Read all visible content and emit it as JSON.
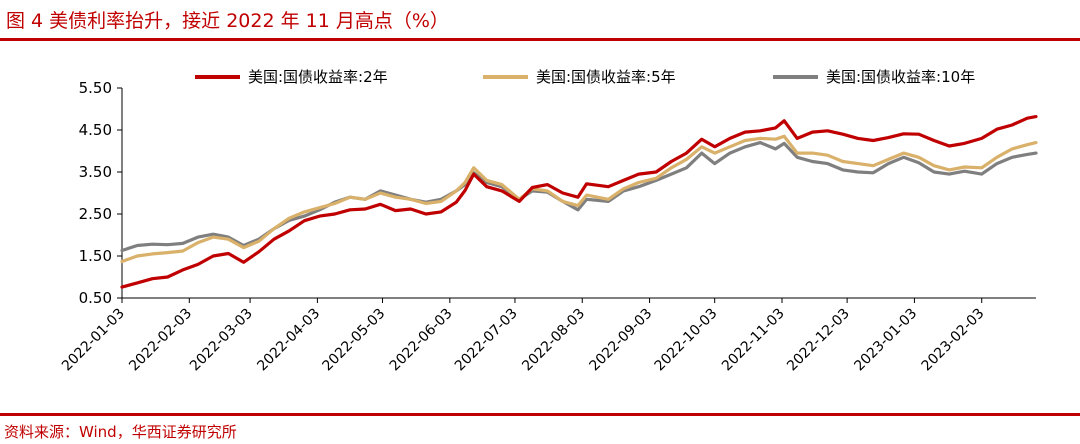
{
  "figure": {
    "title": "图 4  美债利率抬升，接近 2022 年 11 月高点（%）",
    "source": "资料来源：Wind，华西证券研究所"
  },
  "chart_data": {
    "type": "line",
    "ylim": [
      0.5,
      5.5
    ],
    "yticks": [
      "0.50",
      "1.50",
      "2.50",
      "3.50",
      "4.50",
      "5.50"
    ],
    "xlim": [
      "2022-01-03",
      "2023-02-28"
    ],
    "xticks": [
      "2022-01-03",
      "2022-02-03",
      "2022-03-03",
      "2022-04-03",
      "2022-05-03",
      "2022-06-03",
      "2022-07-03",
      "2022-08-03",
      "2022-09-03",
      "2022-10-03",
      "2022-11-03",
      "2022-12-03",
      "2023-01-03",
      "2023-02-03"
    ],
    "legend_position": "top",
    "grid": false,
    "series": [
      {
        "name": "美国:国债收益率:2年",
        "color": "#c00000",
        "points": [
          [
            "2022-01-03",
            0.76
          ],
          [
            "2022-01-10",
            0.86
          ],
          [
            "2022-01-17",
            0.96
          ],
          [
            "2022-01-24",
            1.0
          ],
          [
            "2022-01-31",
            1.17
          ],
          [
            "2022-02-07",
            1.3
          ],
          [
            "2022-02-14",
            1.5
          ],
          [
            "2022-02-21",
            1.56
          ],
          [
            "2022-02-28",
            1.35
          ],
          [
            "2022-03-07",
            1.6
          ],
          [
            "2022-03-14",
            1.9
          ],
          [
            "2022-03-21",
            2.1
          ],
          [
            "2022-03-28",
            2.34
          ],
          [
            "2022-04-04",
            2.45
          ],
          [
            "2022-04-11",
            2.5
          ],
          [
            "2022-04-18",
            2.6
          ],
          [
            "2022-04-25",
            2.62
          ],
          [
            "2022-05-02",
            2.73
          ],
          [
            "2022-05-09",
            2.58
          ],
          [
            "2022-05-16",
            2.62
          ],
          [
            "2022-05-23",
            2.5
          ],
          [
            "2022-05-30",
            2.55
          ],
          [
            "2022-06-06",
            2.78
          ],
          [
            "2022-06-10",
            3.06
          ],
          [
            "2022-06-14",
            3.45
          ],
          [
            "2022-06-20",
            3.15
          ],
          [
            "2022-06-27",
            3.05
          ],
          [
            "2022-07-05",
            2.8
          ],
          [
            "2022-07-11",
            3.13
          ],
          [
            "2022-07-18",
            3.2
          ],
          [
            "2022-07-25",
            3.0
          ],
          [
            "2022-08-01",
            2.9
          ],
          [
            "2022-08-05",
            3.22
          ],
          [
            "2022-08-15",
            3.15
          ],
          [
            "2022-08-22",
            3.3
          ],
          [
            "2022-08-29",
            3.45
          ],
          [
            "2022-09-06",
            3.5
          ],
          [
            "2022-09-13",
            3.75
          ],
          [
            "2022-09-20",
            3.95
          ],
          [
            "2022-09-27",
            4.28
          ],
          [
            "2022-10-03",
            4.1
          ],
          [
            "2022-10-10",
            4.3
          ],
          [
            "2022-10-17",
            4.45
          ],
          [
            "2022-10-24",
            4.48
          ],
          [
            "2022-10-31",
            4.55
          ],
          [
            "2022-11-04",
            4.72
          ],
          [
            "2022-11-10",
            4.3
          ],
          [
            "2022-11-17",
            4.45
          ],
          [
            "2022-11-24",
            4.48
          ],
          [
            "2022-12-01",
            4.4
          ],
          [
            "2022-12-08",
            4.3
          ],
          [
            "2022-12-15",
            4.25
          ],
          [
            "2022-12-22",
            4.32
          ],
          [
            "2022-12-29",
            4.41
          ],
          [
            "2023-01-05",
            4.4
          ],
          [
            "2023-01-12",
            4.25
          ],
          [
            "2023-01-19",
            4.12
          ],
          [
            "2023-01-26",
            4.18
          ],
          [
            "2023-02-03",
            4.3
          ],
          [
            "2023-02-10",
            4.52
          ],
          [
            "2023-02-17",
            4.62
          ],
          [
            "2023-02-24",
            4.78
          ],
          [
            "2023-02-28",
            4.82
          ]
        ]
      },
      {
        "name": "美国:国债收益率:5年",
        "color": "#d9b16a",
        "points": [
          [
            "2022-01-03",
            1.37
          ],
          [
            "2022-01-10",
            1.5
          ],
          [
            "2022-01-17",
            1.55
          ],
          [
            "2022-01-24",
            1.58
          ],
          [
            "2022-01-31",
            1.62
          ],
          [
            "2022-02-07",
            1.82
          ],
          [
            "2022-02-14",
            1.95
          ],
          [
            "2022-02-21",
            1.9
          ],
          [
            "2022-02-28",
            1.7
          ],
          [
            "2022-03-07",
            1.85
          ],
          [
            "2022-03-14",
            2.15
          ],
          [
            "2022-03-21",
            2.4
          ],
          [
            "2022-03-28",
            2.55
          ],
          [
            "2022-04-04",
            2.65
          ],
          [
            "2022-04-11",
            2.75
          ],
          [
            "2022-04-18",
            2.9
          ],
          [
            "2022-04-25",
            2.85
          ],
          [
            "2022-05-02",
            3.0
          ],
          [
            "2022-05-09",
            2.9
          ],
          [
            "2022-05-16",
            2.85
          ],
          [
            "2022-05-23",
            2.75
          ],
          [
            "2022-05-30",
            2.8
          ],
          [
            "2022-06-06",
            3.05
          ],
          [
            "2022-06-10",
            3.25
          ],
          [
            "2022-06-14",
            3.6
          ],
          [
            "2022-06-20",
            3.3
          ],
          [
            "2022-06-27",
            3.2
          ],
          [
            "2022-07-05",
            2.85
          ],
          [
            "2022-07-11",
            3.1
          ],
          [
            "2022-07-18",
            3.05
          ],
          [
            "2022-07-25",
            2.8
          ],
          [
            "2022-08-01",
            2.7
          ],
          [
            "2022-08-05",
            2.95
          ],
          [
            "2022-08-15",
            2.85
          ],
          [
            "2022-08-22",
            3.1
          ],
          [
            "2022-08-29",
            3.25
          ],
          [
            "2022-09-06",
            3.35
          ],
          [
            "2022-09-13",
            3.6
          ],
          [
            "2022-09-20",
            3.8
          ],
          [
            "2022-09-27",
            4.1
          ],
          [
            "2022-10-03",
            3.95
          ],
          [
            "2022-10-10",
            4.1
          ],
          [
            "2022-10-17",
            4.25
          ],
          [
            "2022-10-24",
            4.3
          ],
          [
            "2022-10-31",
            4.28
          ],
          [
            "2022-11-04",
            4.35
          ],
          [
            "2022-11-10",
            3.95
          ],
          [
            "2022-11-17",
            3.95
          ],
          [
            "2022-11-24",
            3.9
          ],
          [
            "2022-12-01",
            3.75
          ],
          [
            "2022-12-08",
            3.7
          ],
          [
            "2022-12-15",
            3.65
          ],
          [
            "2022-12-22",
            3.8
          ],
          [
            "2022-12-29",
            3.95
          ],
          [
            "2023-01-05",
            3.85
          ],
          [
            "2023-01-12",
            3.65
          ],
          [
            "2023-01-19",
            3.55
          ],
          [
            "2023-01-26",
            3.62
          ],
          [
            "2023-02-03",
            3.6
          ],
          [
            "2023-02-10",
            3.85
          ],
          [
            "2023-02-17",
            4.05
          ],
          [
            "2023-02-24",
            4.15
          ],
          [
            "2023-02-28",
            4.2
          ]
        ]
      },
      {
        "name": "美国:国债收益率:10年",
        "color": "#7f7f7f",
        "points": [
          [
            "2022-01-03",
            1.63
          ],
          [
            "2022-01-10",
            1.75
          ],
          [
            "2022-01-17",
            1.78
          ],
          [
            "2022-01-24",
            1.77
          ],
          [
            "2022-01-31",
            1.8
          ],
          [
            "2022-02-07",
            1.95
          ],
          [
            "2022-02-14",
            2.02
          ],
          [
            "2022-02-21",
            1.95
          ],
          [
            "2022-02-28",
            1.75
          ],
          [
            "2022-03-07",
            1.9
          ],
          [
            "2022-03-14",
            2.15
          ],
          [
            "2022-03-21",
            2.35
          ],
          [
            "2022-03-28",
            2.45
          ],
          [
            "2022-04-04",
            2.6
          ],
          [
            "2022-04-11",
            2.78
          ],
          [
            "2022-04-18",
            2.9
          ],
          [
            "2022-04-25",
            2.85
          ],
          [
            "2022-05-02",
            3.05
          ],
          [
            "2022-05-09",
            2.95
          ],
          [
            "2022-05-16",
            2.85
          ],
          [
            "2022-05-23",
            2.78
          ],
          [
            "2022-05-30",
            2.85
          ],
          [
            "2022-06-06",
            3.05
          ],
          [
            "2022-06-10",
            3.2
          ],
          [
            "2022-06-14",
            3.48
          ],
          [
            "2022-06-20",
            3.25
          ],
          [
            "2022-06-27",
            3.15
          ],
          [
            "2022-07-05",
            2.85
          ],
          [
            "2022-07-11",
            3.05
          ],
          [
            "2022-07-18",
            3.02
          ],
          [
            "2022-07-25",
            2.8
          ],
          [
            "2022-08-01",
            2.6
          ],
          [
            "2022-08-05",
            2.85
          ],
          [
            "2022-08-15",
            2.8
          ],
          [
            "2022-08-22",
            3.05
          ],
          [
            "2022-08-29",
            3.15
          ],
          [
            "2022-09-06",
            3.3
          ],
          [
            "2022-09-13",
            3.45
          ],
          [
            "2022-09-20",
            3.6
          ],
          [
            "2022-09-27",
            3.95
          ],
          [
            "2022-10-03",
            3.7
          ],
          [
            "2022-10-10",
            3.95
          ],
          [
            "2022-10-17",
            4.1
          ],
          [
            "2022-10-24",
            4.2
          ],
          [
            "2022-10-31",
            4.05
          ],
          [
            "2022-11-04",
            4.18
          ],
          [
            "2022-11-10",
            3.85
          ],
          [
            "2022-11-17",
            3.75
          ],
          [
            "2022-11-24",
            3.7
          ],
          [
            "2022-12-01",
            3.55
          ],
          [
            "2022-12-08",
            3.5
          ],
          [
            "2022-12-15",
            3.48
          ],
          [
            "2022-12-22",
            3.7
          ],
          [
            "2022-12-29",
            3.85
          ],
          [
            "2023-01-05",
            3.72
          ],
          [
            "2023-01-12",
            3.5
          ],
          [
            "2023-01-19",
            3.45
          ],
          [
            "2023-01-26",
            3.52
          ],
          [
            "2023-02-03",
            3.45
          ],
          [
            "2023-02-10",
            3.7
          ],
          [
            "2023-02-17",
            3.85
          ],
          [
            "2023-02-24",
            3.92
          ],
          [
            "2023-02-28",
            3.95
          ]
        ]
      }
    ]
  }
}
